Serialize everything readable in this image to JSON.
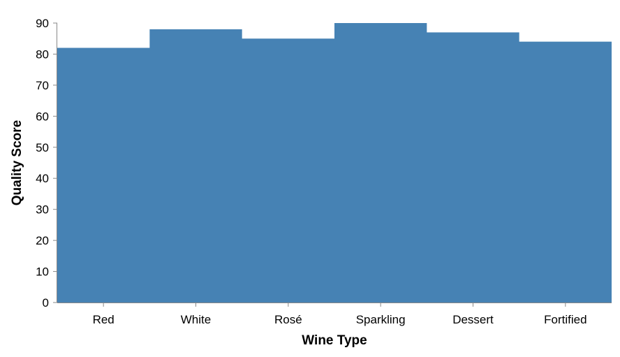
{
  "chart_data": {
    "type": "area",
    "interpolation": "step",
    "title": "",
    "xlabel": "Wine Type",
    "ylabel": "Quality Score",
    "categories": [
      "Red",
      "White",
      "Rosé",
      "Sparkling",
      "Dessert",
      "Fortified"
    ],
    "values": [
      82,
      88,
      85,
      90,
      87,
      84
    ],
    "ylim": [
      0,
      90
    ],
    "yticks": [
      0,
      10,
      20,
      30,
      40,
      50,
      60,
      70,
      80,
      90
    ],
    "grid": false,
    "legend": "none",
    "colors": {
      "fill": "#4682b4",
      "axis": "#888888",
      "text": "#000000"
    }
  }
}
